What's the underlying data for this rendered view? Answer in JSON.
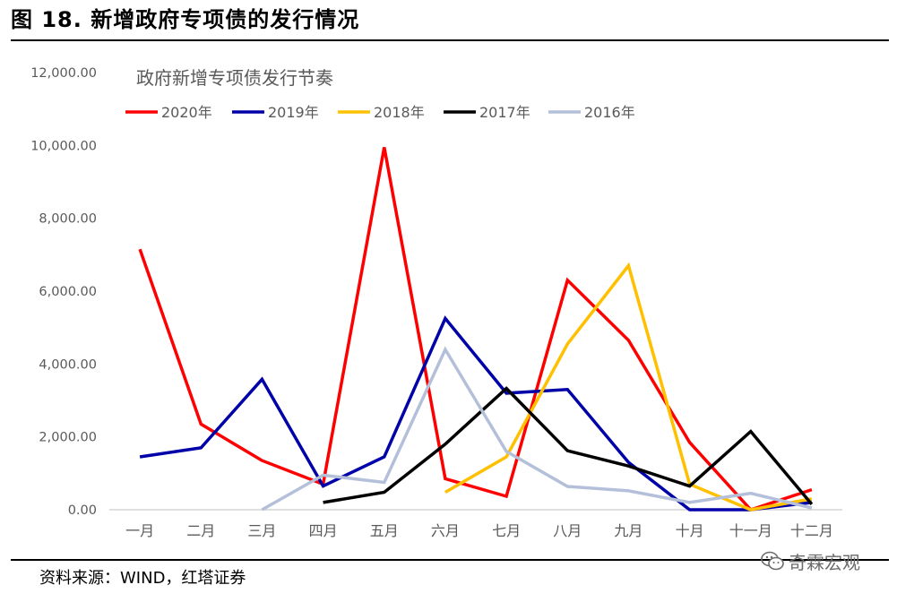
{
  "figure": {
    "title": "图 18. 新增政府专项债的发行情况",
    "source": "资料来源：WIND，红塔证券",
    "watermark": "奇霖宏观"
  },
  "chart_data": {
    "type": "line",
    "title": "政府新增专项债发行节奏",
    "xlabel": "",
    "ylabel": "",
    "ylim": [
      0,
      12000
    ],
    "y_ticks": [
      "0.00",
      "2,000.00",
      "4,000.00",
      "6,000.00",
      "8,000.00",
      "10,000.00",
      "12,000.00"
    ],
    "grid": false,
    "legend_position": "top",
    "categories": [
      "一月",
      "二月",
      "三月",
      "四月",
      "五月",
      "六月",
      "七月",
      "八月",
      "九月",
      "十月",
      "十一月",
      "十二月"
    ],
    "series": [
      {
        "name": "2020年",
        "color": "#ff0000",
        "values": [
          7150,
          2350,
          1350,
          700,
          9950,
          850,
          370,
          6300,
          4650,
          1850,
          0,
          550
        ]
      },
      {
        "name": "2019年",
        "color": "#0000a8",
        "values": [
          1450,
          1700,
          3580,
          650,
          1450,
          5250,
          3200,
          3300,
          1300,
          0,
          0,
          200
        ]
      },
      {
        "name": "2018年",
        "color": "#ffc000",
        "values": [
          null,
          null,
          null,
          null,
          null,
          480,
          1450,
          4550,
          6700,
          700,
          0,
          300
        ]
      },
      {
        "name": "2017年",
        "color": "#000000",
        "values": [
          null,
          null,
          null,
          200,
          480,
          1800,
          3330,
          1620,
          1200,
          650,
          2150,
          150
        ]
      },
      {
        "name": "2016年",
        "color": "#b4c0da",
        "values": [
          null,
          null,
          0,
          950,
          750,
          4400,
          1600,
          640,
          520,
          200,
          450,
          50
        ]
      }
    ]
  }
}
